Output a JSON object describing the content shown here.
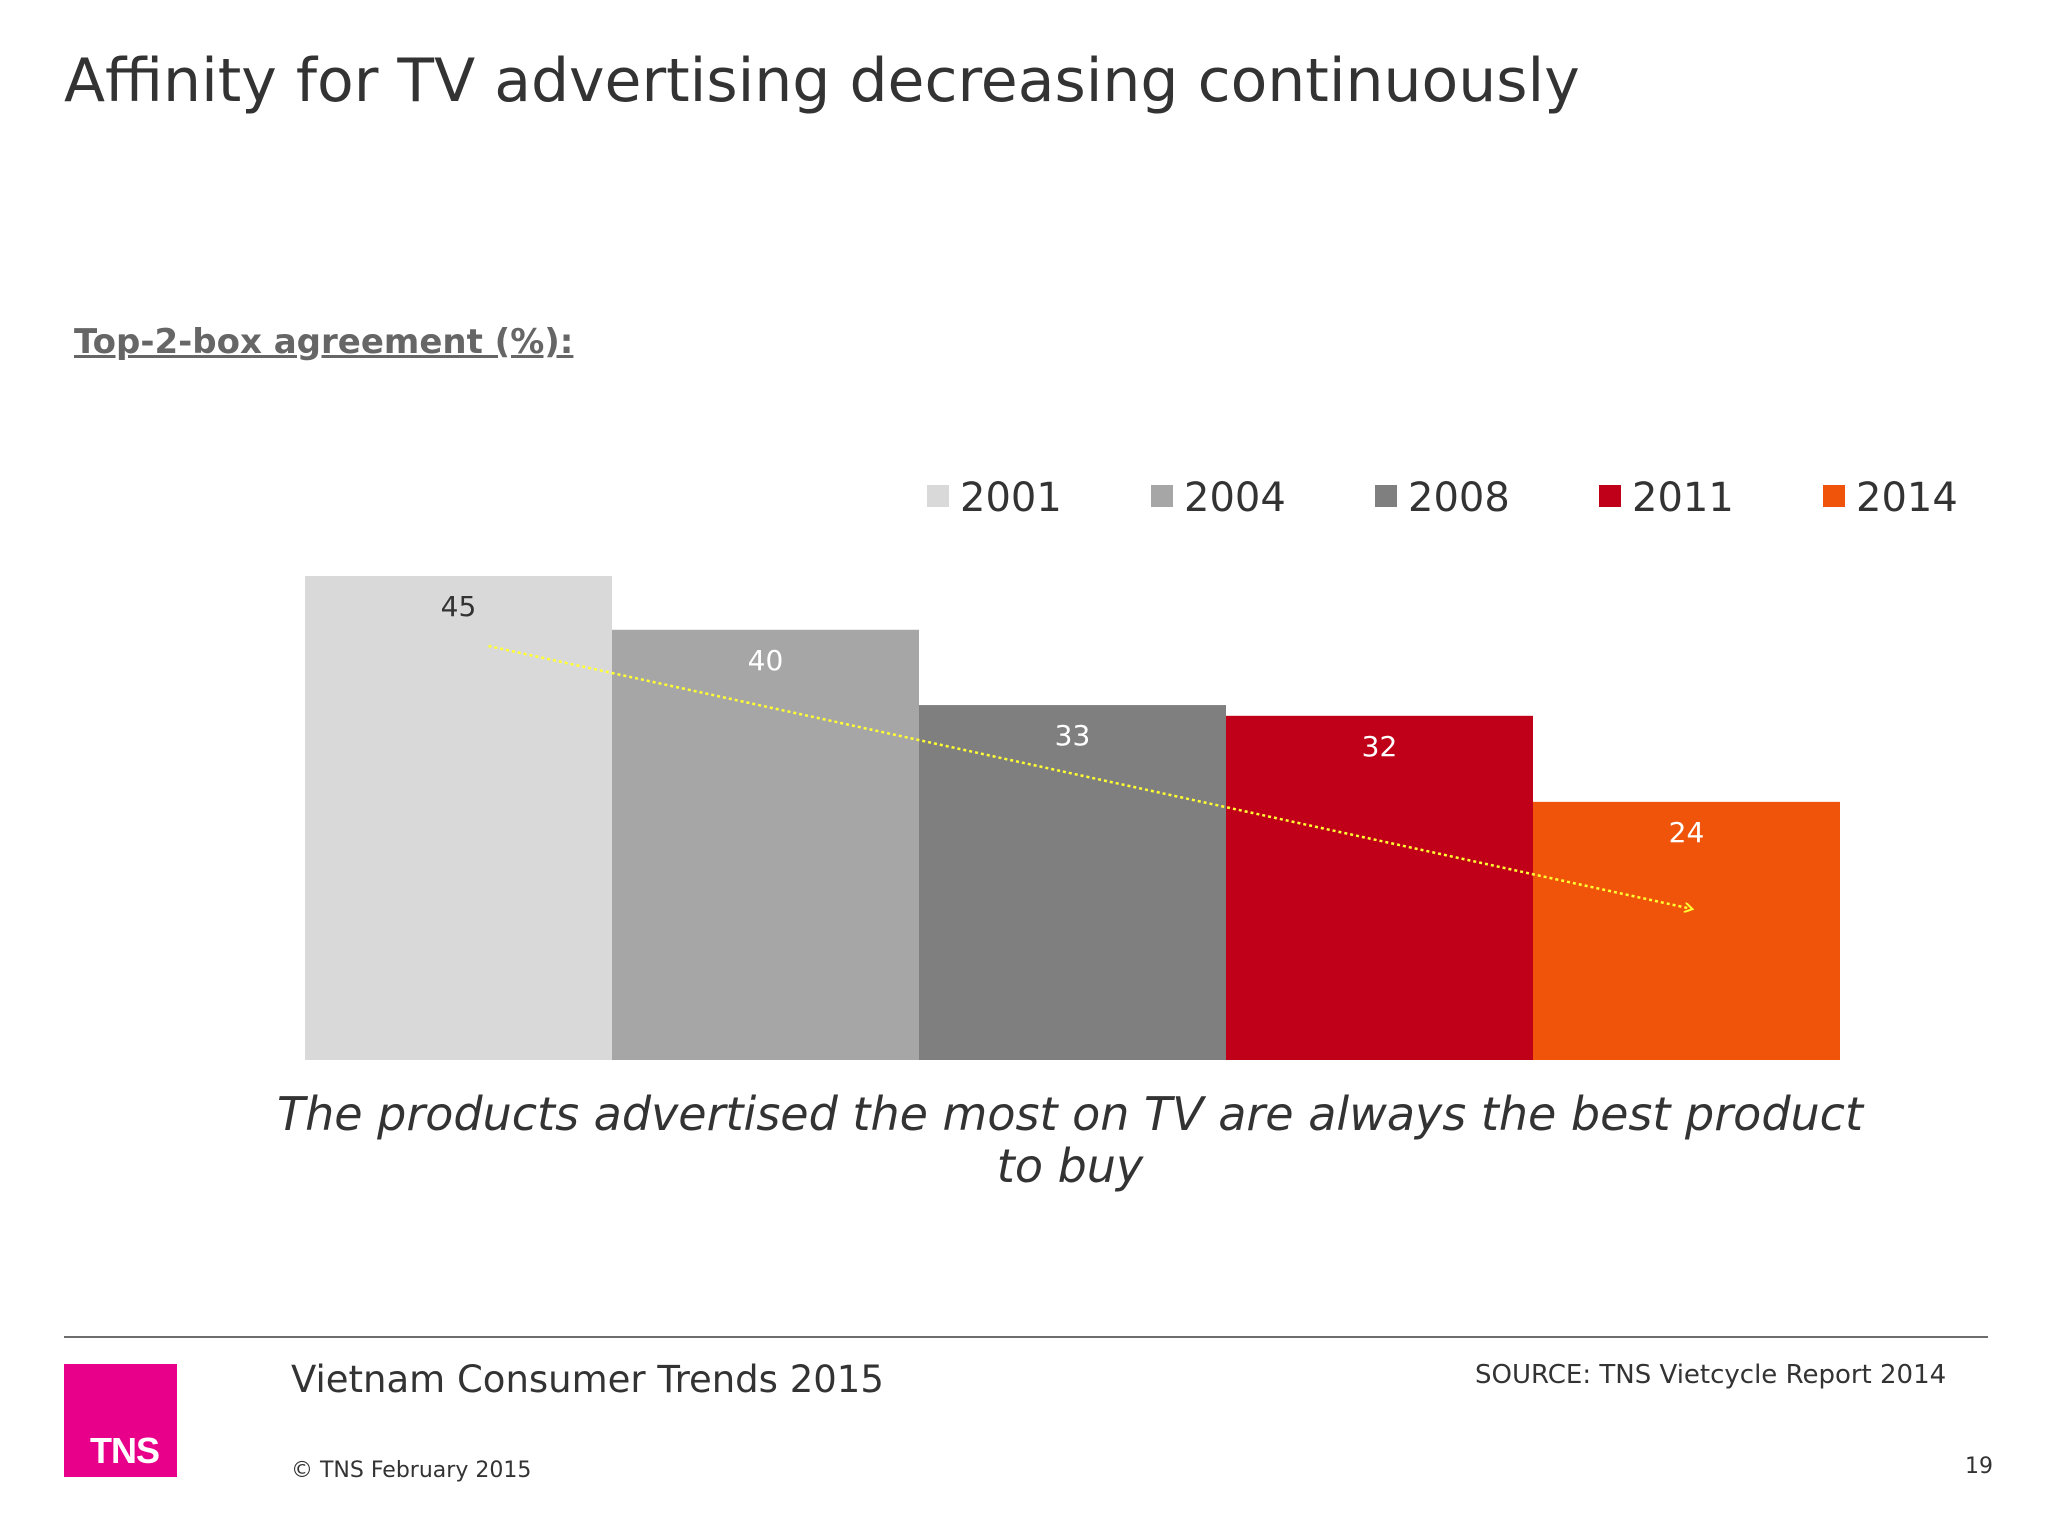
{
  "title": "Affinity for TV advertising decreasing continuously",
  "subtitle": "Top-2-box agreement (%):",
  "caption": "The products advertised the most on TV are always the best product to buy",
  "footer": {
    "title": "Vietnam Consumer Trends 2015",
    "copyright": "© TNS February 2015",
    "source": "SOURCE: TNS Vietcycle Report 2014",
    "page": "19",
    "logo_text": "TNS",
    "logo_color": "#e9008a"
  },
  "chart_data": {
    "type": "bar",
    "categories": [
      "2001",
      "2004",
      "2008",
      "2011",
      "2014"
    ],
    "values": [
      45,
      40,
      33,
      32,
      24
    ],
    "colors": [
      "#d9d9d9",
      "#a6a6a6",
      "#7f7f7f",
      "#c00018",
      "#f0540a"
    ],
    "label_colors": [
      "#333333",
      "#ffffff",
      "#ffffff",
      "#ffffff",
      "#ffffff"
    ],
    "legend": [
      "2001",
      "2004",
      "2008",
      "2011",
      "2014"
    ],
    "legend_position": "top-right",
    "ylim": [
      0,
      45
    ],
    "grid": false,
    "trend_arrow": {
      "from": "2001",
      "to": "2014",
      "style": "dotted",
      "color": "#ffff33"
    }
  }
}
